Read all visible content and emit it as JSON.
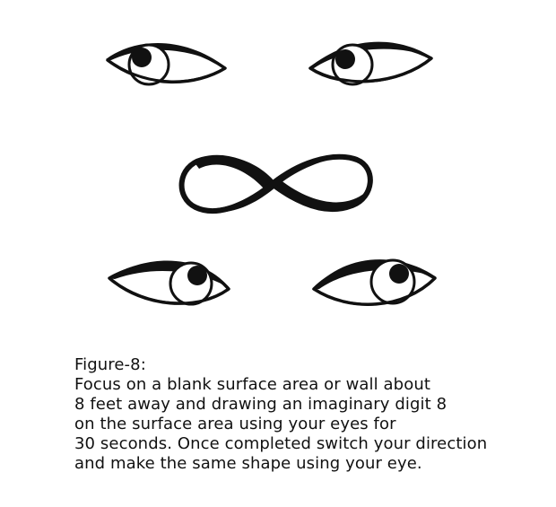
{
  "figure": {
    "title": "Figure-8:",
    "instructions": [
      "Focus on a blank surface area or wall about",
      "8 feet away and drawing an imaginary digit 8",
      "on the surface area using your eyes for",
      "30 seconds. Once completed switch your direction",
      "and make the same shape using your eye."
    ]
  },
  "icons": {
    "top_left_eye": "eye-icon",
    "top_right_eye": "eye-icon",
    "infinity": "infinity-icon",
    "bottom_left_eye": "eye-icon",
    "bottom_right_eye": "eye-icon"
  },
  "colors": {
    "ink": "#111111",
    "background": "#ffffff"
  }
}
